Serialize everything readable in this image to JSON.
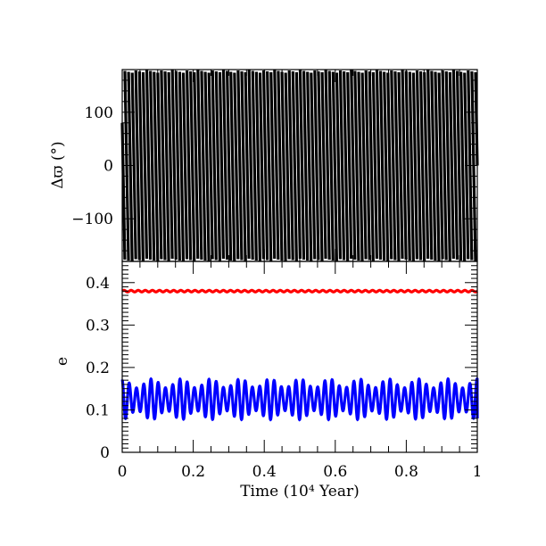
{
  "chart_data": [
    {
      "type": "line",
      "panel": "top",
      "ylabel": "Δϖ (°)",
      "xlim": [
        0,
        1
      ],
      "ylim": [
        -180,
        180
      ],
      "yticks": [
        -100,
        0,
        100
      ],
      "ytick_labels": [
        "−100",
        "0",
        "100"
      ],
      "grid": false,
      "series": [
        {
          "color": "#000000",
          "description_values": "circulating sawtooth; decreases from 180 to -180 repeatedly",
          "wrap_range": [
            -180,
            180
          ],
          "start_value": 80,
          "slope_per_unit_x": -35000,
          "x_range": [
            0,
            1
          ]
        }
      ]
    },
    {
      "type": "line",
      "panel": "bottom",
      "xlabel": "Time (10⁴ Year)",
      "ylabel": "e",
      "xlim": [
        0,
        1
      ],
      "ylim": [
        0,
        0.45
      ],
      "xticks": [
        0,
        0.2,
        0.4,
        0.6,
        0.8,
        1
      ],
      "xtick_labels": [
        "0",
        "0.2",
        "0.4",
        "0.6",
        "0.8",
        "1"
      ],
      "yticks": [
        0,
        0.1,
        0.2,
        0.3,
        0.4
      ],
      "ytick_labels": [
        "0",
        "0.1",
        "0.2",
        "0.3",
        "0.4"
      ],
      "grid": false,
      "series": [
        {
          "color": "#ff0000",
          "mean": 0.38,
          "amplitude": 0.002,
          "cycles": 50
        },
        {
          "color": "#0000ff",
          "mean": 0.125,
          "amplitude": 0.048,
          "cycles": 49,
          "beat_cycles": 12,
          "start_value": 0.17,
          "end_value": 0.08
        }
      ]
    }
  ]
}
